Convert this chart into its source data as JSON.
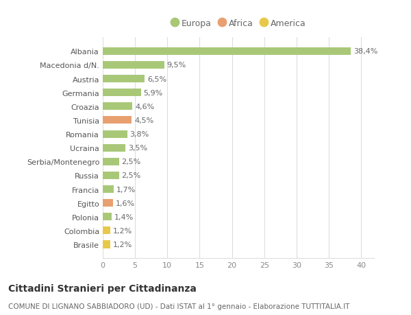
{
  "categories": [
    "Brasile",
    "Colombia",
    "Polonia",
    "Egitto",
    "Francia",
    "Russia",
    "Serbia/Montenegro",
    "Ucraina",
    "Romania",
    "Tunisia",
    "Croazia",
    "Germania",
    "Austria",
    "Macedonia d/N.",
    "Albania"
  ],
  "values": [
    1.2,
    1.2,
    1.4,
    1.6,
    1.7,
    2.5,
    2.5,
    3.5,
    3.8,
    4.5,
    4.6,
    5.9,
    6.5,
    9.5,
    38.4
  ],
  "labels": [
    "1,2%",
    "1,2%",
    "1,4%",
    "1,6%",
    "1,7%",
    "2,5%",
    "2,5%",
    "3,5%",
    "3,8%",
    "4,5%",
    "4,6%",
    "5,9%",
    "6,5%",
    "9,5%",
    "38,4%"
  ],
  "colors": [
    "#e8c84a",
    "#e8c84a",
    "#a8c878",
    "#e8a070",
    "#a8c878",
    "#a8c878",
    "#a8c878",
    "#a8c878",
    "#a8c878",
    "#e8a070",
    "#a8c878",
    "#a8c878",
    "#a8c878",
    "#a8c878",
    "#a8c878"
  ],
  "legend_items": [
    {
      "label": "Europa",
      "color": "#a8c878"
    },
    {
      "label": "Africa",
      "color": "#e8a070"
    },
    {
      "label": "America",
      "color": "#e8c84a"
    }
  ],
  "title1": "Cittadini Stranieri per Cittadinanza",
  "title2": "COMUNE DI LIGNANO SABBIADORO (UD) - Dati ISTAT al 1° gennaio - Elaborazione TUTTITALIA.IT",
  "xlim": [
    0,
    42
  ],
  "xticks": [
    0,
    5,
    10,
    15,
    20,
    25,
    30,
    35,
    40
  ],
  "background_color": "#ffffff",
  "grid_color": "#dddddd",
  "bar_height": 0.55,
  "label_fontsize": 8,
  "tick_fontsize": 8,
  "legend_fontsize": 9,
  "title1_fontsize": 10,
  "title2_fontsize": 7.5
}
